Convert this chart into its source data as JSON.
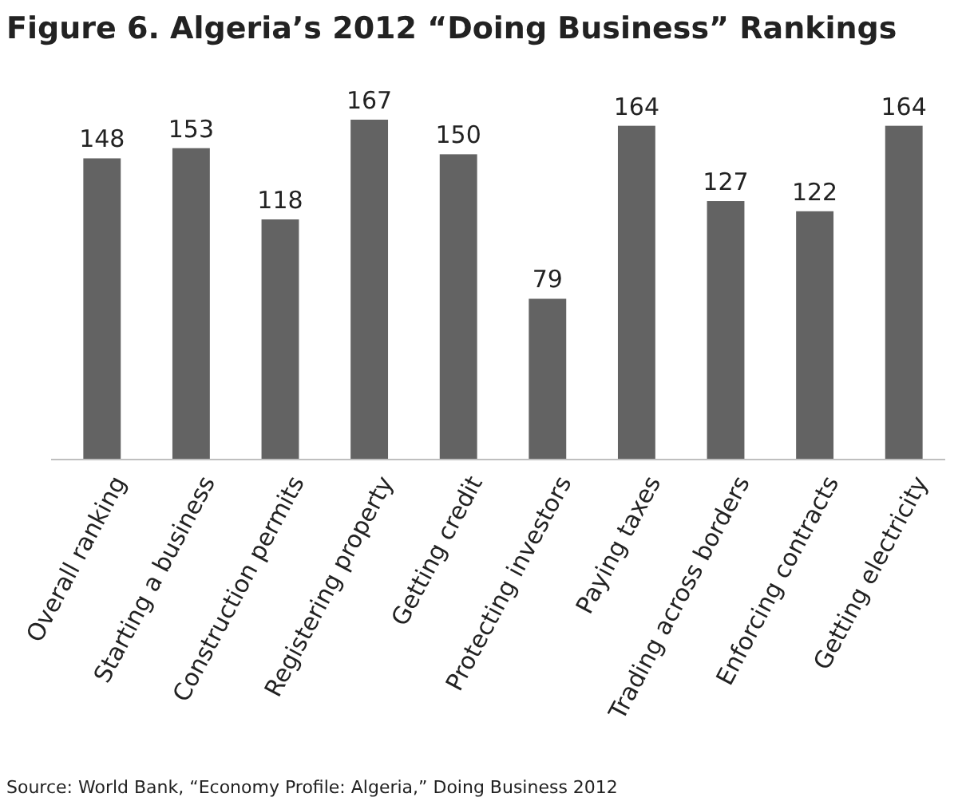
{
  "chart_data": {
    "type": "bar",
    "title": "Figure 6. Algeria’s 2012 “Doing Business” Rankings",
    "categories": [
      "Overall ranking",
      "Starting a business",
      "Construction permits",
      "Registering property",
      "Getting credit",
      "Protecting investors",
      "Paying taxes",
      "Trading across borders",
      "Enforcing contracts",
      "Getting electricity"
    ],
    "values": [
      148,
      153,
      118,
      167,
      150,
      79,
      164,
      127,
      122,
      164
    ],
    "color": "#636363",
    "data_labels": true,
    "annotations": [
      "Source: World Bank, “Economy Profile: Algeria,” Doing Business 2012"
    ]
  }
}
